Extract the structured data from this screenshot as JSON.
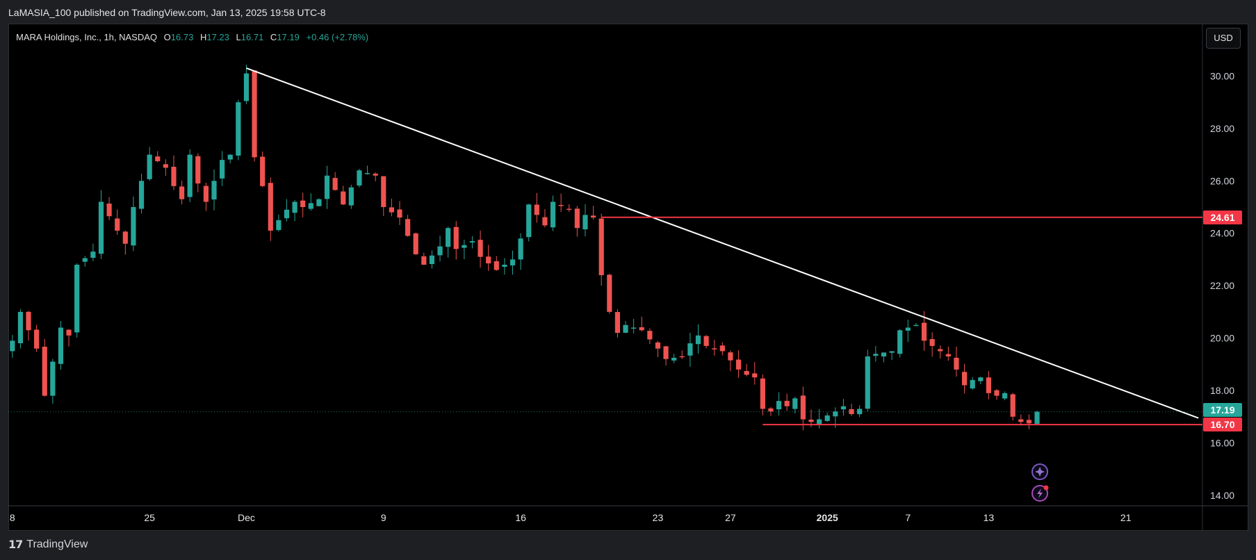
{
  "header": {
    "published": "LaMASIA_100 published on TradingView.com, Jan 13, 2025 19:58 UTC-8"
  },
  "legend": {
    "symbol": "MARA Holdings, Inc., 1h, NASDAQ",
    "open_label": "O",
    "open": "16.73",
    "high_label": "H",
    "high": "17.23",
    "low_label": "L",
    "low": "16.71",
    "close_label": "C",
    "close": "17.19",
    "change": "+0.46 (+2.78%)"
  },
  "currency_button": "USD",
  "badges": {
    "resistance": "24.61",
    "last_price": "17.19",
    "support": "16.70"
  },
  "footer": {
    "brand": "TradingView"
  },
  "colors": {
    "up": "#26a69a",
    "down": "#ef5350",
    "level_line": "#f23645",
    "trendline": "#ffffff",
    "background": "#000000"
  },
  "chart_data": {
    "type": "candlestick",
    "title": "MARA Holdings, Inc., 1h, NASDAQ",
    "ylim": [
      13.6,
      32.0
    ],
    "y_ticks": [
      14,
      16,
      18,
      20,
      22,
      24,
      26,
      28,
      30
    ],
    "y_tick_labels": [
      "14.00",
      "16.00",
      "18.00",
      "20.00",
      "22.00",
      "24.00",
      "26.00",
      "28.00",
      "30.00"
    ],
    "x_tick_labels": [
      "8",
      "25",
      "Dec",
      "9",
      "16",
      "23",
      "27",
      "2025",
      "7",
      "13",
      "21"
    ],
    "x_tick_positions": [
      0,
      17,
      29,
      46,
      63,
      80,
      89,
      101,
      111,
      121,
      138
    ],
    "xlim": [
      -0.5,
      147.5
    ],
    "price_path": [
      [
        0,
        19.9
      ],
      [
        1,
        21.0
      ],
      [
        3,
        19.6
      ],
      [
        4,
        17.8
      ],
      [
        6,
        20.4
      ],
      [
        7,
        20.1
      ],
      [
        8,
        22.8
      ],
      [
        10,
        23.3
      ],
      [
        11,
        25.2
      ],
      [
        13,
        24.1
      ],
      [
        14,
        23.6
      ],
      [
        15,
        25.0
      ],
      [
        17,
        27.0
      ],
      [
        19,
        26.5
      ],
      [
        20,
        25.8
      ],
      [
        21,
        25.3
      ],
      [
        22,
        27.0
      ],
      [
        23,
        25.9
      ],
      [
        24,
        25.2
      ],
      [
        26,
        26.8
      ],
      [
        27,
        27.0
      ],
      [
        28,
        29.0
      ],
      [
        29,
        30.1
      ],
      [
        30,
        26.9
      ],
      [
        31,
        25.8
      ],
      [
        32,
        24.1
      ],
      [
        34,
        24.9
      ],
      [
        35,
        25.2
      ],
      [
        36,
        25.0
      ],
      [
        38,
        25.3
      ],
      [
        39,
        26.2
      ],
      [
        41,
        25.1
      ],
      [
        43,
        26.4
      ],
      [
        45,
        26.2
      ],
      [
        46,
        25.0
      ],
      [
        48,
        24.6
      ],
      [
        50,
        23.2
      ],
      [
        51,
        22.8
      ],
      [
        53,
        23.5
      ],
      [
        54,
        24.2
      ],
      [
        55,
        23.4
      ],
      [
        57,
        23.7
      ],
      [
        58,
        23.1
      ],
      [
        60,
        22.6
      ],
      [
        62,
        23.0
      ],
      [
        63,
        23.8
      ],
      [
        64,
        25.1
      ],
      [
        66,
        24.3
      ],
      [
        67,
        25.2
      ],
      [
        69,
        24.9
      ],
      [
        70,
        24.2
      ],
      [
        71,
        24.7
      ],
      [
        72,
        24.6
      ],
      [
        73,
        22.4
      ],
      [
        74,
        21.0
      ],
      [
        75,
        20.2
      ],
      [
        76,
        20.5
      ],
      [
        78,
        20.3
      ],
      [
        80,
        19.6
      ],
      [
        81,
        19.2
      ],
      [
        83,
        19.3
      ],
      [
        84,
        19.8
      ],
      [
        85,
        20.1
      ],
      [
        86,
        19.7
      ],
      [
        88,
        19.5
      ],
      [
        90,
        18.8
      ],
      [
        91,
        18.6
      ],
      [
        92,
        18.5
      ],
      [
        93,
        17.3
      ],
      [
        94,
        17.2
      ],
      [
        95,
        17.6
      ],
      [
        96,
        17.4
      ],
      [
        97,
        17.7
      ],
      [
        98,
        16.9
      ],
      [
        99,
        16.8
      ],
      [
        100,
        16.9
      ],
      [
        102,
        17.2
      ],
      [
        103,
        17.4
      ],
      [
        104,
        17.1
      ],
      [
        105,
        17.3
      ],
      [
        106,
        19.3
      ],
      [
        107,
        19.4
      ],
      [
        109,
        19.5
      ],
      [
        110,
        20.3
      ],
      [
        111,
        20.4
      ],
      [
        112,
        20.5
      ],
      [
        113,
        19.9
      ],
      [
        114,
        19.7
      ],
      [
        115,
        19.5
      ],
      [
        116,
        19.3
      ],
      [
        117,
        18.8
      ],
      [
        118,
        18.2
      ],
      [
        119,
        18.4
      ],
      [
        120,
        18.5
      ],
      [
        121,
        17.9
      ],
      [
        122,
        17.8
      ],
      [
        123,
        17.9
      ],
      [
        124,
        17.0
      ],
      [
        125,
        16.8
      ],
      [
        126,
        16.75
      ],
      [
        127,
        17.19
      ]
    ],
    "last_bar": {
      "open": 16.73,
      "high": 17.23,
      "low": 16.71,
      "close": 17.19
    },
    "annotations": [
      {
        "type": "trendline",
        "from": [
          29,
          30.3
        ],
        "to": [
          147,
          16.95
        ]
      },
      {
        "type": "horizontal_ray",
        "level": 24.61,
        "from_x": 73
      },
      {
        "type": "horizontal_segment",
        "level": 16.7,
        "from_x": 93
      }
    ],
    "last_price_line": 17.19
  }
}
